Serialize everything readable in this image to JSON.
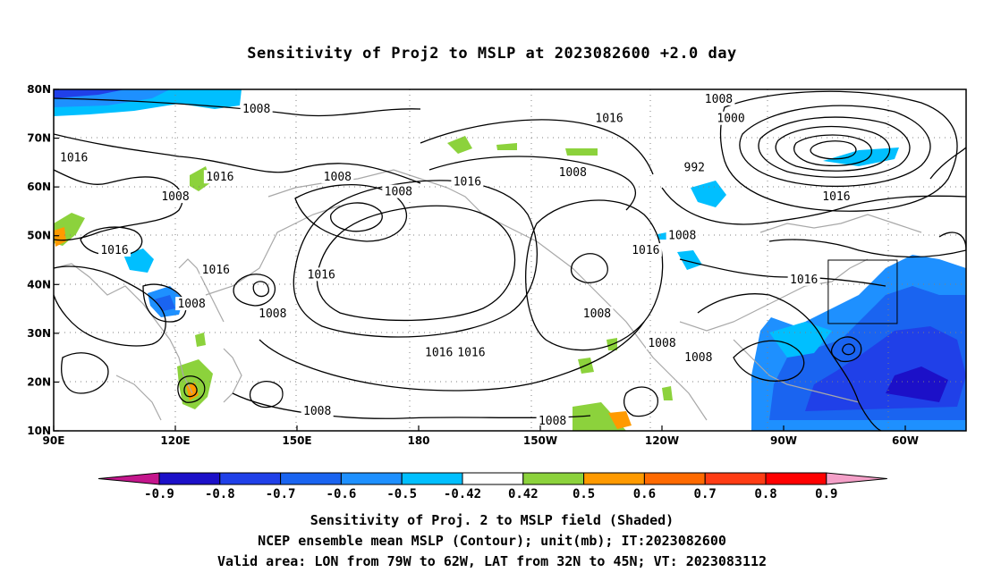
{
  "title": "Sensitivity of Proj2 to MSLP at 2023082600 +2.0 day",
  "lon_labels": [
    "90E",
    "120E",
    "150E",
    "180",
    "150W",
    "120W",
    "90W",
    "60W"
  ],
  "lat_labels": [
    "80N",
    "70N",
    "60N",
    "50N",
    "40N",
    "30N",
    "20N",
    "10N"
  ],
  "contour_labels": [
    {
      "text": "1008",
      "lon": 140,
      "lat": 76
    },
    {
      "text": "1016",
      "lon": 95,
      "lat": 66
    },
    {
      "text": "1016",
      "lon": 131,
      "lat": 62
    },
    {
      "text": "1008",
      "lon": 160,
      "lat": 62
    },
    {
      "text": "1008",
      "lon": 175,
      "lat": 59
    },
    {
      "text": "1016",
      "lon": 192,
      "lat": 61
    },
    {
      "text": "1008",
      "lon": 218,
      "lat": 63
    },
    {
      "text": "1016",
      "lon": 227,
      "lat": 74
    },
    {
      "text": "1008",
      "lon": 254,
      "lat": 78
    },
    {
      "text": "1000",
      "lon": 257,
      "lat": 74
    },
    {
      "text": "992",
      "lon": 248,
      "lat": 64
    },
    {
      "text": "1016",
      "lon": 283,
      "lat": 58
    },
    {
      "text": "1008",
      "lon": 245,
      "lat": 50
    },
    {
      "text": "1016",
      "lon": 236,
      "lat": 47
    },
    {
      "text": "1016",
      "lon": 275,
      "lat": 41
    },
    {
      "text": "1016",
      "lon": 105,
      "lat": 47
    },
    {
      "text": "1016",
      "lon": 130,
      "lat": 43
    },
    {
      "text": "1016",
      "lon": 156,
      "lat": 42
    },
    {
      "text": "1008",
      "lon": 120,
      "lat": 58
    },
    {
      "text": "1008",
      "lon": 124,
      "lat": 36
    },
    {
      "text": "1008",
      "lon": 144,
      "lat": 34
    },
    {
      "text": "1016",
      "lon": 185,
      "lat": 26
    },
    {
      "text": "1016",
      "lon": 193,
      "lat": 26
    },
    {
      "text": "1008",
      "lon": 155,
      "lat": 14
    },
    {
      "text": "1008",
      "lon": 213,
      "lat": 12
    },
    {
      "text": "1008",
      "lon": 224,
      "lat": 34
    },
    {
      "text": "1008",
      "lon": 240,
      "lat": 28
    },
    {
      "text": "1008",
      "lon": 249,
      "lat": 25
    }
  ],
  "valid_box": {
    "lon_west": -79,
    "lon_east": -62,
    "lat_south": 32,
    "lat_north": 45
  },
  "colorbar": {
    "labels": [
      "-0.9",
      "-0.8",
      "-0.7",
      "-0.6",
      "-0.5",
      "-0.42",
      "0.42",
      "0.5",
      "0.6",
      "0.7",
      "0.8",
      "0.9"
    ],
    "colors": [
      "#1c10c8",
      "#2040e8",
      "#1a64f0",
      "#1e90ff",
      "#00bfff",
      "#ffffff",
      "#8cd23c",
      "#ff9a00",
      "#ff6a00",
      "#ff3c14",
      "#ff0000"
    ],
    "low_end_color": "#c4168c",
    "high_end_color": "#f4a0c8"
  },
  "captions": {
    "line1": "Sensitivity of Proj. 2 to MSLP field (Shaded)",
    "line2": "NCEP ensemble mean MSLP (Contour); unit(mb); IT:2023082600",
    "line3": "Valid area: LON from 79W to 62W, LAT from 32N to 45N; VT: 2023083112"
  }
}
